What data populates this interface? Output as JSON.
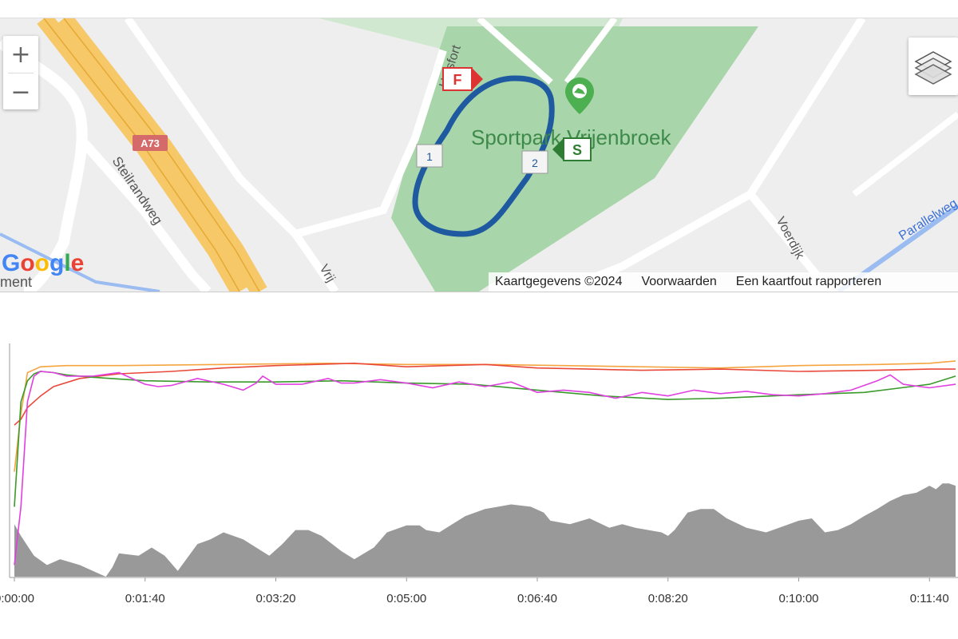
{
  "map": {
    "park_label": "Sportpark Vrijenbroek",
    "street_labels": {
      "hulsfort": "Hulsfort",
      "steilrandweg": "Steilrandweg",
      "voerdijk": "Voerdijk",
      "vrij": "Vrij",
      "parallel": "Parallelweg",
      "partial_left": "ment"
    },
    "highway_shield": "A73",
    "markers": {
      "finish": "F",
      "start": "S",
      "lap1": "1",
      "lap2": "2"
    },
    "zoom_in": "+",
    "zoom_out": "−",
    "attribution": {
      "copyright": "Kaartgegevens ©2024",
      "terms": "Voorwaarden",
      "report": "Een kaartfout rapporteren"
    },
    "logo": "Google",
    "route_color": "#1f5aa0",
    "park_color": "#a8d5aa",
    "layers_icon": "layers-icon"
  },
  "chart": {
    "x_ticks": [
      "0:00:00",
      "0:01:40",
      "0:03:20",
      "0:05:00",
      "0:06:40",
      "0:08:20",
      "0:10:00",
      "0:11:40"
    ],
    "x_tick_seconds": [
      0,
      100,
      200,
      300,
      400,
      500,
      600,
      700
    ],
    "x_max_seconds": 720,
    "series_colors": {
      "orange": "#f4a540",
      "red": "#e9493a",
      "green": "#3a9a2b",
      "magenta": "#e040e0",
      "elevation": "#999999"
    }
  },
  "chart_data": {
    "type": "area",
    "x_unit": "seconds",
    "x_labels": [
      "0:00:00",
      "0:01:40",
      "0:03:20",
      "0:05:00",
      "0:06:40",
      "0:08:20",
      "0:10:00",
      "0:11:40"
    ],
    "series": [
      {
        "color": "#999999",
        "kind": "area",
        "x": [
          0,
          5,
          15,
          25,
          35,
          50,
          60,
          70,
          75,
          80,
          95,
          105,
          115,
          125,
          140,
          150,
          160,
          175,
          185,
          195,
          205,
          215,
          225,
          235,
          250,
          260,
          275,
          285,
          300,
          310,
          315,
          325,
          335,
          345,
          360,
          380,
          395,
          405,
          410,
          425,
          440,
          455,
          465,
          475,
          485,
          495,
          500,
          505,
          515,
          525,
          535,
          545,
          560,
          575,
          585,
          600,
          610,
          620,
          630,
          640,
          650,
          660,
          670,
          680,
          690,
          700,
          705,
          710,
          715,
          720
        ],
        "y": [
          45,
          35,
          18,
          10,
          15,
          10,
          5,
          0,
          8,
          20,
          18,
          25,
          18,
          5,
          28,
          32,
          38,
          32,
          25,
          18,
          28,
          40,
          40,
          35,
          22,
          15,
          25,
          38,
          44,
          44,
          40,
          38,
          45,
          52,
          58,
          62,
          60,
          55,
          48,
          45,
          50,
          42,
          45,
          42,
          40,
          38,
          35,
          40,
          55,
          58,
          58,
          50,
          42,
          38,
          42,
          48,
          50,
          38,
          40,
          45,
          52,
          58,
          65,
          70,
          72,
          78,
          75,
          80,
          80,
          78
        ]
      },
      {
        "color": "#f4a540",
        "kind": "line",
        "x": [
          0,
          5,
          10,
          20,
          40,
          80,
          160,
          240,
          300,
          360,
          420,
          480,
          540,
          600,
          660,
          700,
          720
        ],
        "y": [
          90,
          140,
          175,
          180,
          181,
          181,
          182,
          183,
          182,
          182,
          181,
          180,
          179,
          181,
          182,
          183,
          185
        ]
      },
      {
        "color": "#e9493a",
        "kind": "line",
        "x": [
          0,
          5,
          10,
          20,
          30,
          50,
          80,
          120,
          160,
          200,
          260,
          300,
          360,
          400,
          440,
          480,
          540,
          600,
          660,
          700,
          720
        ],
        "y": [
          130,
          135,
          145,
          155,
          163,
          170,
          174,
          176,
          179,
          181,
          183,
          180,
          182,
          179,
          178,
          177,
          178,
          176,
          177,
          178,
          178
        ]
      },
      {
        "color": "#3a9a2b",
        "kind": "line",
        "x": [
          0,
          5,
          10,
          15,
          20,
          30,
          40,
          60,
          100,
          150,
          200,
          250,
          300,
          350,
          400,
          450,
          500,
          540,
          600,
          650,
          700,
          720
        ],
        "y": [
          60,
          150,
          168,
          174,
          176,
          175,
          173,
          171,
          168,
          167,
          167,
          168,
          166,
          165,
          160,
          155,
          152,
          153,
          156,
          158,
          165,
          172
        ]
      },
      {
        "color": "#e040e0",
        "kind": "line",
        "x": [
          0,
          5,
          10,
          15,
          20,
          30,
          40,
          60,
          80,
          100,
          110,
          120,
          140,
          160,
          175,
          185,
          190,
          200,
          220,
          240,
          250,
          260,
          280,
          300,
          320,
          340,
          360,
          380,
          400,
          420,
          440,
          460,
          480,
          500,
          520,
          540,
          560,
          580,
          600,
          620,
          640,
          660,
          670,
          680,
          700,
          720
        ],
        "y": [
          10,
          60,
          150,
          172,
          176,
          175,
          172,
          172,
          175,
          165,
          163,
          164,
          170,
          165,
          160,
          166,
          172,
          165,
          165,
          170,
          166,
          166,
          169,
          166,
          162,
          167,
          163,
          167,
          158,
          160,
          158,
          153,
          158,
          155,
          160,
          157,
          159,
          156,
          155,
          157,
          160,
          168,
          173,
          165,
          162,
          165
        ]
      }
    ],
    "ylim": [
      0,
      200
    ],
    "xlim": [
      0,
      720
    ],
    "grid": false,
    "legend": "none"
  }
}
